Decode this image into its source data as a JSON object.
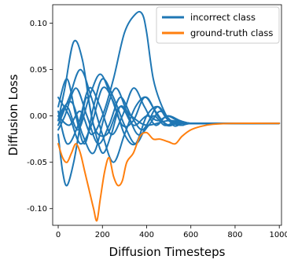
{
  "chart_data": {
    "type": "line",
    "xlabel": "Diffusion Timesteps",
    "ylabel": "Diffusion Loss",
    "xlim": [
      -25,
      1010
    ],
    "ylim": [
      -0.118,
      0.12
    ],
    "x_ticks": [
      0,
      200,
      400,
      600,
      800,
      1000
    ],
    "y_ticks": [
      -0.1,
      -0.05,
      0.0,
      0.05,
      0.1
    ],
    "y_tick_labels": [
      "-0.10",
      "-0.05",
      "0.00",
      "0.05",
      "0.10"
    ],
    "grid": false,
    "legend_position": "top-right",
    "colors": {
      "incorrect": "#1f77b4",
      "ground_truth": "#ff7f0e"
    },
    "series": [
      {
        "name": "incorrect class",
        "color": "#1f77b4",
        "lines": [
          {
            "x": [
              0,
              30,
              70,
              110,
              160,
              220,
              280,
              340,
              400,
              450,
              500,
              550,
              600,
              700,
              800,
              1000
            ],
            "y": [
              -0.005,
              0.03,
              0.08,
              0.06,
              -0.01,
              -0.02,
              0.01,
              -0.01,
              0.0,
              -0.005,
              0.0,
              -0.005,
              -0.008,
              -0.008,
              -0.008,
              -0.008
            ]
          },
          {
            "x": [
              0,
              50,
              100,
              150,
              200,
              250,
              300,
              350,
              380,
              400,
              430,
              470,
              520,
              560,
              600,
              700,
              800,
              1000
            ],
            "y": [
              0.0,
              -0.01,
              0.005,
              -0.02,
              0.0,
              0.04,
              0.09,
              0.11,
              0.11,
              0.09,
              0.04,
              0.01,
              -0.01,
              -0.008,
              -0.008,
              -0.008,
              -0.008,
              -0.008
            ]
          },
          {
            "x": [
              0,
              20,
              40,
              70,
              100,
              130,
              160,
              200,
              240,
              280,
              330,
              400,
              500,
              600,
              800,
              1000
            ],
            "y": [
              -0.02,
              -0.06,
              -0.075,
              -0.05,
              -0.01,
              0.02,
              -0.01,
              -0.04,
              -0.02,
              0.01,
              0.0,
              -0.01,
              -0.005,
              -0.008,
              -0.008,
              -0.008
            ]
          },
          {
            "x": [
              0,
              40,
              80,
              120,
              160,
              200,
              250,
              300,
              350,
              400,
              450,
              500,
              550,
              600,
              700,
              1000
            ],
            "y": [
              0.01,
              0.04,
              0.0,
              -0.03,
              0.01,
              0.04,
              0.02,
              -0.01,
              -0.03,
              -0.01,
              0.01,
              -0.005,
              -0.01,
              -0.008,
              -0.008,
              -0.008
            ]
          },
          {
            "x": [
              0,
              50,
              100,
              150,
              200,
              250,
              300,
              350,
              400,
              450,
              500,
              550,
              600,
              700,
              1000
            ],
            "y": [
              -0.01,
              0.02,
              0.05,
              0.02,
              -0.02,
              -0.05,
              -0.02,
              0.01,
              0.02,
              0.0,
              -0.01,
              -0.006,
              -0.008,
              -0.008,
              -0.008
            ]
          },
          {
            "x": [
              0,
              40,
              90,
              140,
              190,
              240,
              290,
              340,
              390,
              440,
              490,
              540,
              600,
              700,
              1000
            ],
            "y": [
              0.005,
              -0.03,
              -0.01,
              0.03,
              0.01,
              -0.02,
              0.0,
              0.03,
              0.01,
              -0.01,
              0.0,
              -0.005,
              -0.008,
              -0.008,
              -0.008
            ]
          },
          {
            "x": [
              0,
              60,
              110,
              160,
              210,
              260,
              310,
              360,
              410,
              460,
              510,
              560,
              620,
              1000
            ],
            "y": [
              0.0,
              0.015,
              -0.02,
              -0.04,
              0.0,
              0.03,
              0.005,
              -0.02,
              -0.01,
              0.005,
              -0.005,
              -0.01,
              -0.008,
              -0.008
            ]
          },
          {
            "x": [
              0,
              30,
              80,
              130,
              180,
              230,
              280,
              330,
              380,
              430,
              480,
              530,
              600,
              1000
            ],
            "y": [
              -0.015,
              0.0,
              0.03,
              0.0,
              -0.03,
              -0.01,
              0.02,
              0.0,
              -0.015,
              0.0,
              -0.01,
              -0.007,
              -0.008,
              -0.008
            ]
          },
          {
            "x": [
              0,
              50,
              100,
              150,
              200,
              250,
              300,
              350,
              400,
              450,
              500,
              580,
              650,
              1000
            ],
            "y": [
              0.02,
              0.0,
              -0.03,
              -0.01,
              0.03,
              0.015,
              -0.02,
              -0.03,
              0.0,
              0.01,
              -0.005,
              -0.008,
              -0.008,
              -0.008
            ]
          },
          {
            "x": [
              0,
              40,
              90,
              140,
              190,
              240,
              290,
              340,
              390,
              440,
              490,
              540,
              600,
              1000
            ],
            "y": [
              -0.005,
              0.01,
              -0.015,
              0.02,
              0.045,
              0.02,
              -0.01,
              -0.005,
              0.02,
              0.005,
              -0.01,
              -0.008,
              -0.008,
              -0.008
            ]
          }
        ]
      },
      {
        "name": "ground-truth class",
        "color": "#ff7f0e",
        "lines": [
          {
            "x": [
              0,
              20,
              40,
              60,
              80,
              100,
              120,
              140,
              160,
              175,
              190,
              210,
              230,
              250,
              270,
              290,
              310,
              340,
              370,
              400,
              430,
              460,
              500,
              530,
              560,
              600,
              650,
              700,
              800,
              1000
            ],
            "y": [
              -0.03,
              -0.045,
              -0.05,
              -0.04,
              -0.03,
              -0.04,
              -0.06,
              -0.08,
              -0.1,
              -0.113,
              -0.09,
              -0.06,
              -0.045,
              -0.065,
              -0.075,
              -0.07,
              -0.05,
              -0.04,
              -0.022,
              -0.018,
              -0.025,
              -0.025,
              -0.028,
              -0.03,
              -0.022,
              -0.015,
              -0.011,
              -0.009,
              -0.008,
              -0.008
            ]
          }
        ]
      }
    ]
  }
}
